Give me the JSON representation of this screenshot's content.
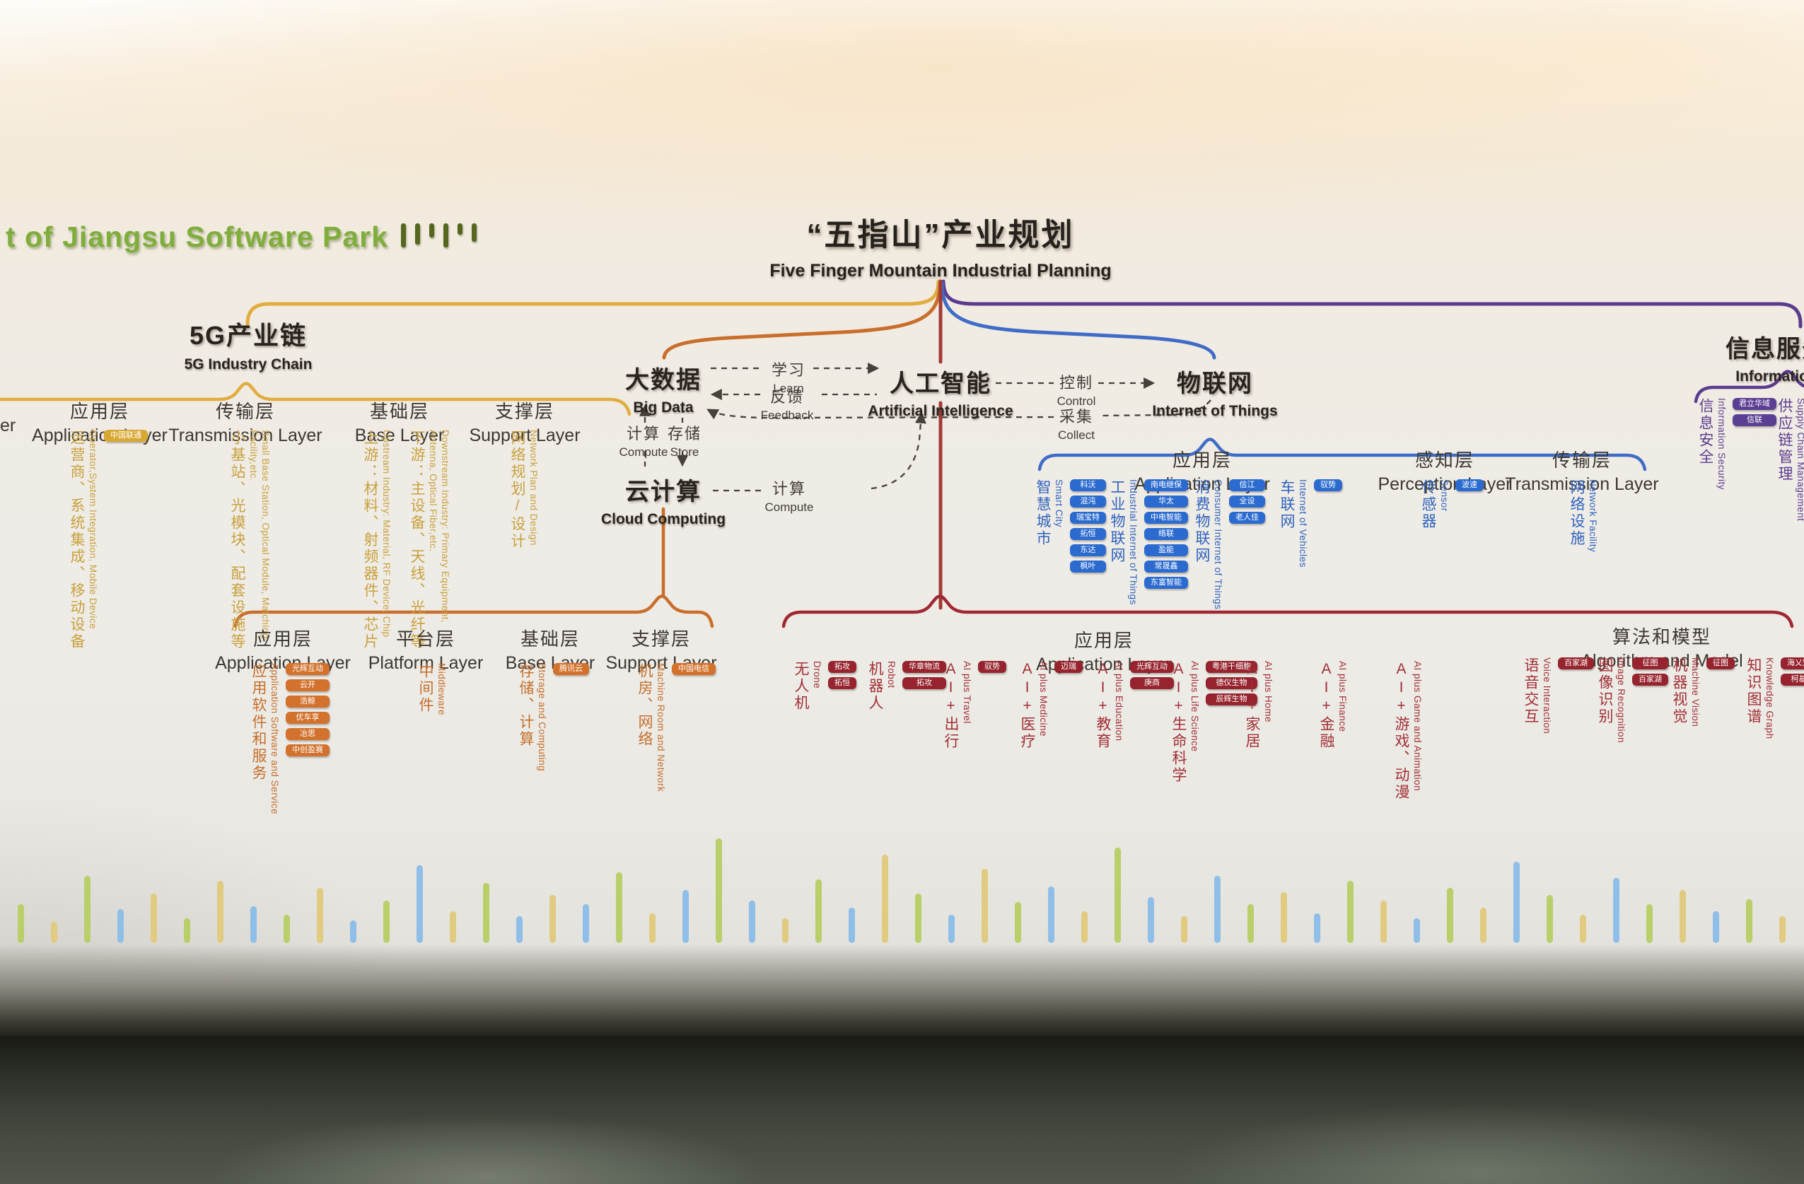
{
  "palette": {
    "logo_green": "#7fae3c",
    "g5_yellow": "#e2ac3e",
    "cloud_orange": "#c96f2b",
    "ai_red": "#a02833",
    "iot_blue": "#3f6cc7",
    "info_purple": "#5c3b8e",
    "ink": "#26211d",
    "bar_green": "#b9cf6a",
    "bar_blue": "#8fbfe8",
    "bar_sand": "#e0cb81"
  },
  "logo": {
    "text": "t of Jiangsu Software Park",
    "bars": [
      34,
      30,
      20,
      34,
      16,
      26
    ]
  },
  "title": {
    "cn": "“五指山”产业规划",
    "en": "Five Finger Mountain Industrial Planning"
  },
  "nodes": {
    "g5": {
      "cn": "5G产业链",
      "en": "5G Industry Chain"
    },
    "bigdata": {
      "cn": "大数据",
      "en": "Big Data"
    },
    "ai": {
      "cn": "人工智能",
      "en": "Artificial Intelligence"
    },
    "iot": {
      "cn": "物联网",
      "en": "Internet of Things"
    },
    "cloud": {
      "cn": "云计算",
      "en": "Cloud Computing"
    },
    "info": {
      "cn": "信息服务",
      "en": "Information"
    }
  },
  "flows": {
    "learn": {
      "cn": "学习",
      "en": "Learn"
    },
    "feedback": {
      "cn": "反馈",
      "en": "Feedback"
    },
    "compute_left": {
      "cn": "计算",
      "en": "Compute"
    },
    "store": {
      "cn": "存储",
      "en": "Store"
    },
    "control": {
      "cn": "控制",
      "en": "Control"
    },
    "collect": {
      "cn": "采集",
      "en": "Collect"
    },
    "compute_bottom": {
      "cn": "计算",
      "en": "Compute"
    }
  },
  "g5_section": {
    "clipped_header_en": "er",
    "layers": [
      {
        "cn": "应用层",
        "en": "Application Layer",
        "items": [
          {
            "cn": "运营商、系统集成、移动设备",
            "en": "Operator,System Integration, Mobile Device",
            "badges": [
              "中国联通"
            ]
          }
        ]
      },
      {
        "cn": "传输层",
        "en": "Transmission Layer",
        "items": [
          {
            "cn": "小基站、光模块、配套设施等",
            "en": "Small Base Station, Optical Module, Matching Facility,etc.",
            "badges": []
          }
        ]
      },
      {
        "cn": "基础层",
        "en": "Base Layer",
        "items": [
          {
            "cn": "上游：材料、射频器件、芯片",
            "en": "Upstream Industry: Material, RF Device, Chip",
            "badges": []
          },
          {
            "cn": "下游：主设备、天线、光纤等",
            "en": "Downstream Industry: Primary Equipment, Antenna, Optical Fiber,etc.",
            "badges": []
          }
        ]
      },
      {
        "cn": "支撑层",
        "en": "Support Layer",
        "items": [
          {
            "cn": "网络规划/设计",
            "en": "Network Plan and Design",
            "badges": []
          }
        ]
      }
    ]
  },
  "cloud_section": {
    "layers": [
      {
        "cn": "应用层",
        "en": "Application Layer",
        "items": [
          {
            "cn": "应用软件和服务",
            "en": "Application Software and Service",
            "badges": [
              "光辉互动",
              "云开",
              "浩鲸",
              "优车享",
              "冶思",
              "中创盈赛"
            ]
          }
        ]
      },
      {
        "cn": "平台层",
        "en": "Platform Layer",
        "items": [
          {
            "cn": "中间件",
            "en": "Middleware",
            "badges": []
          }
        ]
      },
      {
        "cn": "基础层",
        "en": "Base Layer",
        "items": [
          {
            "cn": "存储、计算",
            "en": "Storage and Computing",
            "badges": [
              "腾讯云"
            ]
          }
        ]
      },
      {
        "cn": "支撑层",
        "en": "Support Layer",
        "items": [
          {
            "cn": "机房、网络",
            "en": "Machine Room and Network",
            "badges": [
              "中国电信"
            ]
          }
        ]
      }
    ]
  },
  "iot_section": {
    "layers": [
      {
        "cn": "应用层",
        "en": "Application Layer",
        "items": [
          {
            "cn": "智慧城市",
            "en": "Smart City",
            "badges": [
              "科沃",
              "混沌",
              "瑞宝特",
              "拓恒",
              "东达",
              "枫叶"
            ]
          },
          {
            "cn": "工业物联网",
            "en": "Industrial Internet of Things",
            "badges": [
              "南电继保",
              "华太",
              "中电智能",
              "络联",
              "盈能",
              "常晟鑫",
              "东富智能"
            ]
          },
          {
            "cn": "消费物联网",
            "en": "Consumer Internet of Things",
            "badges": [
              "信江",
              "全设",
              "老人佳"
            ]
          },
          {
            "cn": "车联网",
            "en": "Internet of Vehicles",
            "badges": [
              "驭势"
            ]
          }
        ]
      },
      {
        "cn": "感知层",
        "en": "Perception Layer",
        "items": [
          {
            "cn": "传感器",
            "en": "Sensor",
            "badges": [
              "波速"
            ]
          }
        ]
      },
      {
        "cn": "传输层",
        "en": "Transmission Layer",
        "items": [
          {
            "cn": "网络设施",
            "en": "Network Facility",
            "badges": []
          }
        ]
      }
    ]
  },
  "ai_section": {
    "app_layer": {
      "cn": "应用层",
      "en": "Application Layer",
      "items": [
        {
          "cn": "无人机",
          "en": "Drone",
          "badges": [
            "拓攻",
            "拓恒"
          ]
        },
        {
          "cn": "机器人",
          "en": "Robot",
          "badges": [
            "华章物流",
            "拓攻"
          ]
        },
        {
          "cn": "AI+出行",
          "en": "AI plus Travel",
          "badges": [
            "驭势"
          ]
        },
        {
          "cn": "AI+医疗",
          "en": "AI plus Medicine",
          "badges": [
            "迈瑞"
          ]
        },
        {
          "cn": "AI+教育",
          "en": "AI plus Education",
          "badges": [
            "光辉互动",
            "庚商"
          ]
        },
        {
          "cn": "AI+生命科学",
          "en": "AI plus Life Science",
          "badges": [
            "粤港干细胞",
            "德仪生物",
            "辰辉生物"
          ]
        },
        {
          "cn": "AI+家居",
          "en": "AI plus Home",
          "badges": []
        },
        {
          "cn": "AI+金融",
          "en": "AI plus Finance",
          "badges": []
        },
        {
          "cn": "AI+游戏、动漫",
          "en": "AI plus Game and Animation",
          "badges": []
        }
      ]
    },
    "algo_layer": {
      "cn": "算法和模型",
      "en": "Algorithm and Model",
      "items": [
        {
          "cn": "语音交互",
          "en": "Voice Interaction",
          "badges": [
            "百家湖"
          ]
        },
        {
          "cn": "图像识别",
          "en": "Image Recognition",
          "badges": [
            "征图",
            "百家湖"
          ]
        },
        {
          "cn": "机器视觉",
          "en": "Machine Vision",
          "badges": [
            "征图"
          ]
        },
        {
          "cn": "知识图谱",
          "en": "Knowledge Graph",
          "badges": [
            "海乂知",
            "柯基"
          ]
        }
      ]
    }
  },
  "info_section": {
    "layers": [
      {
        "cn": "信息安全",
        "en": "Information Security",
        "badges": [
          "君立华域",
          "信联"
        ]
      },
      {
        "cn": "供应链管理",
        "en": "Supply Chain Management",
        "badges": []
      }
    ]
  },
  "equalizer": {
    "colors": [
      "#b9cf6a",
      "#8fbfe8",
      "#e0cb81"
    ],
    "bars": [
      [
        55,
        0
      ],
      [
        30,
        2
      ],
      [
        95,
        0
      ],
      [
        48,
        1
      ],
      [
        70,
        2
      ],
      [
        35,
        0
      ],
      [
        88,
        2
      ],
      [
        52,
        1
      ],
      [
        40,
        0
      ],
      [
        78,
        2
      ],
      [
        32,
        1
      ],
      [
        60,
        0
      ],
      [
        110,
        1
      ],
      [
        45,
        2
      ],
      [
        85,
        0
      ],
      [
        38,
        1
      ],
      [
        68,
        2
      ],
      [
        55,
        1
      ],
      [
        100,
        0
      ],
      [
        42,
        2
      ],
      [
        75,
        1
      ],
      [
        148,
        0
      ],
      [
        60,
        1
      ],
      [
        35,
        2
      ],
      [
        90,
        0
      ],
      [
        50,
        1
      ],
      [
        125,
        2
      ],
      [
        70,
        0
      ],
      [
        40,
        1
      ],
      [
        105,
        2
      ],
      [
        58,
        0
      ],
      [
        80,
        1
      ],
      [
        45,
        2
      ],
      [
        135,
        0
      ],
      [
        65,
        1
      ],
      [
        38,
        2
      ],
      [
        95,
        1
      ],
      [
        55,
        0
      ],
      [
        72,
        2
      ],
      [
        42,
        1
      ],
      [
        88,
        0
      ],
      [
        60,
        2
      ],
      [
        35,
        1
      ],
      [
        78,
        0
      ],
      [
        50,
        2
      ],
      [
        115,
        1
      ],
      [
        68,
        0
      ],
      [
        40,
        2
      ],
      [
        92,
        1
      ],
      [
        55,
        0
      ],
      [
        75,
        2
      ],
      [
        45,
        1
      ],
      [
        62,
        0
      ],
      [
        38,
        2
      ]
    ]
  }
}
